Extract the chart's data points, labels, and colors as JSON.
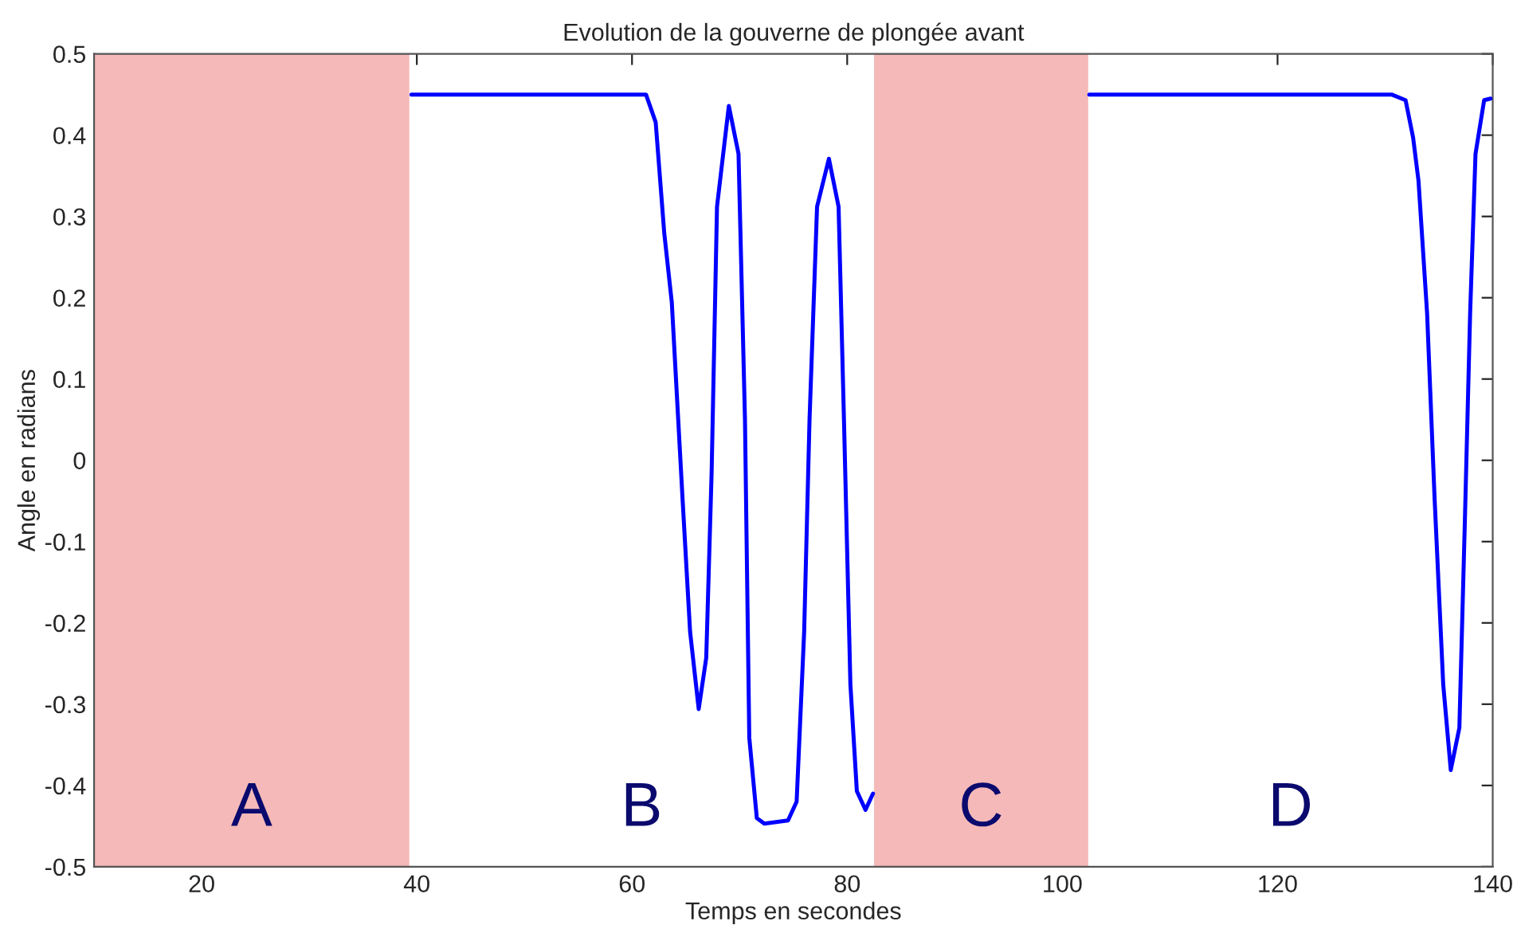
{
  "chart_data": {
    "type": "line",
    "title": "Evolution de la gouverne de plongée avant",
    "xlabel": "Temps en secondes",
    "ylabel": "Angle en radians",
    "x": [
      39.5,
      61.3,
      62.2,
      63.0,
      63.7,
      64.7,
      65.4,
      66.2,
      66.9,
      67.4,
      67.9,
      69.0,
      69.9,
      70.5,
      70.9,
      71.6,
      72.3,
      74.5,
      75.3,
      76.0,
      76.5,
      77.2,
      78.3,
      79.2,
      79.7,
      80.3,
      80.9,
      81.7,
      82.4,
      92.0,
      102.5,
      130.6,
      131.9,
      132.6,
      133.1,
      133.9,
      134.6,
      135.4,
      136.1,
      136.9,
      137.4,
      137.9,
      138.4,
      139.2,
      139.8
    ],
    "series": [
      {
        "color": "#0000ff",
        "values": [
          0.45,
          0.45,
          0.416,
          0.279,
          0.194,
          -0.048,
          -0.211,
          -0.306,
          -0.243,
          -0.015,
          0.312,
          0.436,
          0.377,
          0.05,
          -0.341,
          -0.44,
          -0.447,
          -0.443,
          -0.42,
          -0.211,
          0.05,
          0.312,
          0.371,
          0.312,
          0.05,
          -0.276,
          -0.407,
          -0.43,
          -0.41,
          null,
          0.45,
          0.45,
          0.443,
          0.397,
          0.344,
          0.181,
          -0.048,
          -0.276,
          -0.381,
          -0.329,
          -0.08,
          0.181,
          0.377,
          0.443,
          0.445
        ]
      }
    ],
    "bands": [
      {
        "axis": "x",
        "from": 10,
        "to": 39.3,
        "color": "#f4b9b8"
      },
      {
        "axis": "x",
        "from": 82.5,
        "to": 102.4,
        "color": "#f4b9b8"
      }
    ],
    "annotations": [
      "A",
      "B",
      "C",
      "D"
    ],
    "xlim": [
      10,
      140
    ],
    "ylim": [
      -0.5,
      0.5
    ],
    "xticks": [
      20,
      40,
      60,
      80,
      100,
      120,
      140
    ],
    "yticks": [
      -0.5,
      -0.4,
      -0.3,
      -0.2,
      -0.1,
      0,
      0.1,
      0.2,
      0.3,
      0.4,
      0.5
    ],
    "grid": false,
    "legend": false,
    "line_style": "solid",
    "marker": "none"
  }
}
